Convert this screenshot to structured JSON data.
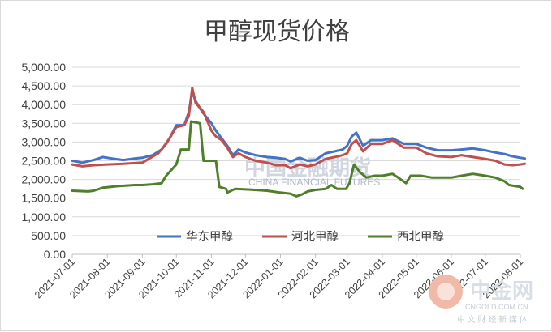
{
  "chart_data": {
    "type": "line",
    "title": "甲醇现货价格",
    "xlabel": "",
    "ylabel": "",
    "ylim": [
      0,
      5000
    ],
    "yticks": [
      "0.00",
      "500.00",
      "1,000.00",
      "1,500.00",
      "2,000.00",
      "2,500.00",
      "3,000.00",
      "3,500.00",
      "4,000.00",
      "4,500.00",
      "5,000.00"
    ],
    "xticks": [
      "2021-07-01",
      "2021-08-01",
      "2021-09-01",
      "2021-10-01",
      "2021-11-01",
      "2021-12-01",
      "2022-01-01",
      "2022-02-01",
      "2022-03-01",
      "2022-04-01",
      "2022-05-01",
      "2022-06-01",
      "2022-07-01",
      "2022-08-01"
    ],
    "grid": "horizontal",
    "legend_position": "bottom-center",
    "series": [
      {
        "name": "华东甲醇",
        "color": "#4472c4",
        "points": [
          [
            "2021-07-01",
            2500
          ],
          [
            "2021-07-10",
            2450
          ],
          [
            "2021-07-20",
            2520
          ],
          [
            "2021-07-28",
            2600
          ],
          [
            "2021-08-05",
            2560
          ],
          [
            "2021-08-15",
            2520
          ],
          [
            "2021-08-25",
            2560
          ],
          [
            "2021-09-01",
            2580
          ],
          [
            "2021-09-10",
            2650
          ],
          [
            "2021-09-18",
            2800
          ],
          [
            "2021-09-25",
            3100
          ],
          [
            "2021-10-01",
            3450
          ],
          [
            "2021-10-08",
            3450
          ],
          [
            "2021-10-12",
            3800
          ],
          [
            "2021-10-15",
            4350
          ],
          [
            "2021-10-18",
            4100
          ],
          [
            "2021-10-24",
            3800
          ],
          [
            "2021-10-28",
            3650
          ],
          [
            "2021-11-01",
            3500
          ],
          [
            "2021-11-05",
            3300
          ],
          [
            "2021-11-10",
            3100
          ],
          [
            "2021-11-15",
            2900
          ],
          [
            "2021-11-20",
            2650
          ],
          [
            "2021-11-25",
            2800
          ],
          [
            "2021-12-01",
            2720
          ],
          [
            "2021-12-10",
            2650
          ],
          [
            "2021-12-20",
            2600
          ],
          [
            "2021-12-28",
            2580
          ],
          [
            "2022-01-05",
            2550
          ],
          [
            "2022-01-10",
            2480
          ],
          [
            "2022-01-18",
            2580
          ],
          [
            "2022-01-25",
            2500
          ],
          [
            "2022-02-01",
            2520
          ],
          [
            "2022-02-10",
            2700
          ],
          [
            "2022-02-18",
            2750
          ],
          [
            "2022-02-25",
            2800
          ],
          [
            "2022-03-01",
            2900
          ],
          [
            "2022-03-05",
            3150
          ],
          [
            "2022-03-09",
            3250
          ],
          [
            "2022-03-15",
            2900
          ],
          [
            "2022-03-22",
            3050
          ],
          [
            "2022-04-01",
            3050
          ],
          [
            "2022-04-10",
            3100
          ],
          [
            "2022-04-20",
            2950
          ],
          [
            "2022-05-01",
            2950
          ],
          [
            "2022-05-10",
            2850
          ],
          [
            "2022-05-20",
            2780
          ],
          [
            "2022-06-01",
            2780
          ],
          [
            "2022-06-10",
            2800
          ],
          [
            "2022-06-20",
            2830
          ],
          [
            "2022-07-01",
            2780
          ],
          [
            "2022-07-10",
            2720
          ],
          [
            "2022-07-18",
            2680
          ],
          [
            "2022-07-25",
            2620
          ],
          [
            "2022-08-01",
            2580
          ],
          [
            "2022-08-05",
            2560
          ]
        ]
      },
      {
        "name": "河北甲醇",
        "color": "#c0504d",
        "points": [
          [
            "2021-07-01",
            2400
          ],
          [
            "2021-07-10",
            2350
          ],
          [
            "2021-07-20",
            2380
          ],
          [
            "2021-08-01",
            2400
          ],
          [
            "2021-08-15",
            2420
          ],
          [
            "2021-09-01",
            2450
          ],
          [
            "2021-09-15",
            2700
          ],
          [
            "2021-09-22",
            2950
          ],
          [
            "2021-10-01",
            3400
          ],
          [
            "2021-10-08",
            3450
          ],
          [
            "2021-10-12",
            3700
          ],
          [
            "2021-10-15",
            4450
          ],
          [
            "2021-10-18",
            4050
          ],
          [
            "2021-10-25",
            3800
          ],
          [
            "2021-11-01",
            3300
          ],
          [
            "2021-11-05",
            3150
          ],
          [
            "2021-11-10",
            3050
          ],
          [
            "2021-11-15",
            2850
          ],
          [
            "2021-11-20",
            2600
          ],
          [
            "2021-11-25",
            2700
          ],
          [
            "2021-12-01",
            2600
          ],
          [
            "2021-12-10",
            2500
          ],
          [
            "2021-12-20",
            2450
          ],
          [
            "2021-12-28",
            2380
          ],
          [
            "2022-01-05",
            2380
          ],
          [
            "2022-01-10",
            2300
          ],
          [
            "2022-01-18",
            2400
          ],
          [
            "2022-01-25",
            2350
          ],
          [
            "2022-02-01",
            2400
          ],
          [
            "2022-02-10",
            2550
          ],
          [
            "2022-02-18",
            2600
          ],
          [
            "2022-02-25",
            2650
          ],
          [
            "2022-03-01",
            2700
          ],
          [
            "2022-03-05",
            2950
          ],
          [
            "2022-03-09",
            3050
          ],
          [
            "2022-03-15",
            2750
          ],
          [
            "2022-03-22",
            2950
          ],
          [
            "2022-04-01",
            2950
          ],
          [
            "2022-04-10",
            3050
          ],
          [
            "2022-04-20",
            2850
          ],
          [
            "2022-05-01",
            2850
          ],
          [
            "2022-05-10",
            2700
          ],
          [
            "2022-05-20",
            2620
          ],
          [
            "2022-06-01",
            2600
          ],
          [
            "2022-06-10",
            2650
          ],
          [
            "2022-06-20",
            2600
          ],
          [
            "2022-07-01",
            2550
          ],
          [
            "2022-07-10",
            2500
          ],
          [
            "2022-07-18",
            2400
          ],
          [
            "2022-07-25",
            2380
          ],
          [
            "2022-08-01",
            2400
          ],
          [
            "2022-08-05",
            2420
          ]
        ]
      },
      {
        "name": "西北甲醇",
        "color": "#4f7f2a",
        "points": [
          [
            "2021-07-01",
            1700
          ],
          [
            "2021-07-15",
            1680
          ],
          [
            "2021-07-20",
            1700
          ],
          [
            "2021-07-28",
            1780
          ],
          [
            "2021-08-10",
            1820
          ],
          [
            "2021-08-25",
            1850
          ],
          [
            "2021-09-01",
            1850
          ],
          [
            "2021-09-10",
            1870
          ],
          [
            "2021-09-18",
            1900
          ],
          [
            "2021-09-22",
            2100
          ],
          [
            "2021-10-01",
            2400
          ],
          [
            "2021-10-05",
            2800
          ],
          [
            "2021-10-12",
            2800
          ],
          [
            "2021-10-14",
            3550
          ],
          [
            "2021-10-22",
            3500
          ],
          [
            "2021-10-25",
            2500
          ],
          [
            "2021-11-05",
            2500
          ],
          [
            "2021-11-08",
            1800
          ],
          [
            "2021-11-14",
            1750
          ],
          [
            "2021-11-15",
            1650
          ],
          [
            "2021-11-22",
            1750
          ],
          [
            "2021-12-05",
            1730
          ],
          [
            "2021-12-20",
            1700
          ],
          [
            "2022-01-01",
            1650
          ],
          [
            "2022-01-10",
            1620
          ],
          [
            "2022-01-15",
            1550
          ],
          [
            "2022-01-20",
            1600
          ],
          [
            "2022-01-25",
            1680
          ],
          [
            "2022-02-01",
            1720
          ],
          [
            "2022-02-10",
            1750
          ],
          [
            "2022-02-15",
            1850
          ],
          [
            "2022-02-20",
            1750
          ],
          [
            "2022-02-28",
            1750
          ],
          [
            "2022-03-03",
            1900
          ],
          [
            "2022-03-07",
            2400
          ],
          [
            "2022-03-12",
            2200
          ],
          [
            "2022-03-18",
            2050
          ],
          [
            "2022-03-25",
            2100
          ],
          [
            "2022-04-01",
            2100
          ],
          [
            "2022-04-10",
            2150
          ],
          [
            "2022-04-15",
            2050
          ],
          [
            "2022-04-22",
            1900
          ],
          [
            "2022-04-26",
            2100
          ],
          [
            "2022-05-05",
            2100
          ],
          [
            "2022-05-15",
            2050
          ],
          [
            "2022-06-01",
            2050
          ],
          [
            "2022-06-10",
            2100
          ],
          [
            "2022-06-20",
            2150
          ],
          [
            "2022-07-01",
            2100
          ],
          [
            "2022-07-10",
            2050
          ],
          [
            "2022-07-18",
            1950
          ],
          [
            "2022-07-22",
            1850
          ],
          [
            "2022-08-01",
            1800
          ],
          [
            "2022-08-03",
            1750
          ]
        ]
      }
    ]
  },
  "watermark": {
    "center_logo_text": "中国金融期货",
    "center_logo_sub": "CHINA FINANCIAL FUTURES"
  },
  "corner_logo": {
    "text": "中金网",
    "url": "CNGOLD.COM.CN",
    "sub": "中 文 财 经 新 媒 体",
    "color": "#e2532a"
  }
}
